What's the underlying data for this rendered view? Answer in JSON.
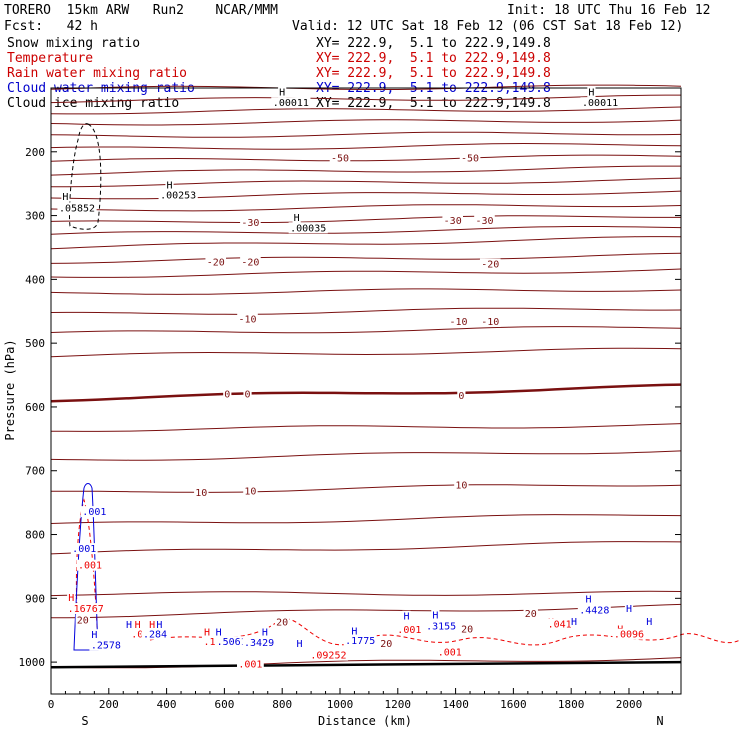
{
  "header": {
    "model": "TORERO  15km ARW   Run2    NCAR/MMM",
    "init": "Init: 18 UTC Thu 16 Feb 12",
    "fcst": "Fcst:   42 h",
    "valid": "Valid: 12 UTC Sat 18 Feb 12 (06 CST Sat 18 Feb 12)"
  },
  "legend": [
    {
      "name": "Snow mixing ratio",
      "color": "#000000",
      "xy": "XY= 222.9,  5.1 to 222.9,149.8",
      "xy_color": "#000000"
    },
    {
      "name": "Temperature",
      "color": "#cc0000",
      "xy": "XY= 222.9,  5.1 to 222.9,149.8",
      "xy_color": "#cc0000"
    },
    {
      "name": "Rain water mixing ratio",
      "color": "#cc0000",
      "xy": "XY= 222.9,  5.1 to 222.9,149.8",
      "xy_color": "#cc0000"
    },
    {
      "name": "Cloud water mixing ratio",
      "color": "#0000cc",
      "xy": "XY= 222.9,  5.1 to 222.9,149.8",
      "xy_color": "#0000cc"
    },
    {
      "name": "Cloud ice mixing ratio",
      "color": "#000000",
      "xy": "XY= 222.9,  5.1 to 222.9,149.8",
      "xy_color": "#000000"
    }
  ],
  "chart_data": {
    "type": "contour",
    "xlabel": "Distance (km)",
    "ylabel": "Pressure (hPa)",
    "xlim": [
      0,
      2180
    ],
    "ylim": [
      1050,
      100
    ],
    "x_ticks": [
      0,
      200,
      400,
      600,
      800,
      1000,
      1200,
      1400,
      1600,
      1800,
      2000
    ],
    "y_ticks": [
      200,
      300,
      400,
      500,
      600,
      700,
      800,
      900,
      1000
    ],
    "endpoints": {
      "left": "S",
      "right": "N"
    },
    "isotherms": [
      {
        "p0": 1008,
        "p1": 993,
        "label": ""
      },
      {
        "p0": 928,
        "p1": 912,
        "label": "20"
      },
      {
        "p0": 893,
        "p1": 892,
        "label": ""
      },
      {
        "p0": 830,
        "p1": 812,
        "label": ""
      },
      {
        "p0": 785,
        "p1": 768,
        "label": ""
      },
      {
        "p0": 735,
        "p1": 720,
        "label": "10"
      },
      {
        "p0": 683,
        "p1": 668,
        "label": ""
      },
      {
        "p0": 636,
        "p1": 628,
        "label": ""
      },
      {
        "p0": 588,
        "p1": 568,
        "label": "0"
      },
      {
        "p0": 520,
        "p1": 510,
        "label": ""
      },
      {
        "p0": 485,
        "p1": 475,
        "label": ""
      },
      {
        "p0": 455,
        "p1": 445,
        "label": ""
      },
      {
        "p0": 422,
        "p1": 415,
        "label": "-10"
      },
      {
        "p0": 395,
        "p1": 385,
        "label": ""
      },
      {
        "p0": 372,
        "p1": 362,
        "label": ""
      },
      {
        "p0": 350,
        "p1": 335,
        "label": ""
      },
      {
        "p0": 330,
        "p1": 318,
        "label": ""
      },
      {
        "p0": 312,
        "p1": 300,
        "label": "-30"
      },
      {
        "p0": 292,
        "p1": 282,
        "label": ""
      },
      {
        "p0": 272,
        "p1": 262,
        "label": ""
      },
      {
        "p0": 252,
        "p1": 244,
        "label": ""
      },
      {
        "p0": 234,
        "p1": 225,
        "label": ""
      },
      {
        "p0": 215,
        "p1": 207,
        "label": "-50"
      },
      {
        "p0": 196,
        "p1": 188,
        "label": ""
      },
      {
        "p0": 176,
        "p1": 170,
        "label": ""
      },
      {
        "p0": 156,
        "p1": 150,
        "label": ""
      },
      {
        "p0": 138,
        "p1": 132,
        "label": ""
      },
      {
        "p0": 120,
        "p1": 114,
        "label": ""
      },
      {
        "p0": 101,
        "p1": 98,
        "label": ""
      }
    ],
    "temperature_labels": [
      {
        "text": "-50",
        "x": 1000,
        "p": 214
      },
      {
        "text": "-50",
        "x": 1450,
        "p": 214
      },
      {
        "text": "-30",
        "x": 690,
        "p": 315
      },
      {
        "text": "-30",
        "x": 1390,
        "p": 312
      },
      {
        "text": "-30",
        "x": 1500,
        "p": 312
      },
      {
        "text": "-20",
        "x": 570,
        "p": 377
      },
      {
        "text": "-20",
        "x": 690,
        "p": 377
      },
      {
        "text": "-20",
        "x": 1520,
        "p": 380
      },
      {
        "text": "-10",
        "x": 680,
        "p": 466
      },
      {
        "text": "-10",
        "x": 1410,
        "p": 470
      },
      {
        "text": "-10",
        "x": 1520,
        "p": 470
      },
      {
        "text": "0",
        "x": 610,
        "p": 584
      },
      {
        "text": "0",
        "x": 680,
        "p": 584
      },
      {
        "text": "0",
        "x": 1420,
        "p": 586
      },
      {
        "text": "10",
        "x": 520,
        "p": 738
      },
      {
        "text": "10",
        "x": 690,
        "p": 736
      },
      {
        "text": "10",
        "x": 1420,
        "p": 726
      },
      {
        "text": "20",
        "x": 800,
        "p": 941
      },
      {
        "text": "20",
        "x": 1660,
        "p": 928
      },
      {
        "text": "20",
        "x": 1440,
        "p": 952
      },
      {
        "text": "20",
        "x": 1160,
        "p": 975
      },
      {
        "text": "20",
        "x": 110,
        "p": 938
      }
    ],
    "snow_labels": [
      {
        "text": "H",
        "x": 800,
        "p": 110
      },
      {
        "text": ".00011",
        "x": 830,
        "p": 127
      },
      {
        "text": "H",
        "x": 1870,
        "p": 110
      },
      {
        "text": ".00011",
        "x": 1900,
        "p": 127
      },
      {
        "text": "H",
        "x": 410,
        "p": 256
      },
      {
        "text": ".00253",
        "x": 440,
        "p": 272
      },
      {
        "text": "H",
        "x": 850,
        "p": 307
      },
      {
        "text": ".00035",
        "x": 890,
        "p": 323
      },
      {
        "text": "H",
        "x": 50,
        "p": 274
      },
      {
        "text": ".05852",
        "x": 90,
        "p": 292
      }
    ],
    "rain_labels": [
      {
        "text": "H",
        "x": 70,
        "p": 903
      },
      {
        "text": ".16767",
        "x": 120,
        "p": 920
      },
      {
        "text": "H",
        "x": 300,
        "p": 945
      },
      {
        "text": "H",
        "x": 350,
        "p": 945
      },
      {
        "text": ".06266",
        "x": 340,
        "p": 960
      },
      {
        "text": "H",
        "x": 540,
        "p": 957
      },
      {
        "text": ".15086",
        "x": 590,
        "p": 972
      },
      {
        "text": ".09252",
        "x": 960,
        "p": 993
      },
      {
        "text": ".001",
        "x": 690,
        "p": 1007
      },
      {
        "text": ".001",
        "x": 1240,
        "p": 953
      },
      {
        "text": ".001",
        "x": 135,
        "p": 852
      },
      {
        "text": "H",
        "x": 1730,
        "p": 940
      },
      {
        "text": ".041",
        "x": 1760,
        "p": 944
      },
      {
        "text": "H",
        "x": 1970,
        "p": 952
      },
      {
        "text": ".0096",
        "x": 2000,
        "p": 960
      },
      {
        "text": ".001",
        "x": 1380,
        "p": 988
      }
    ],
    "cloud_water_labels": [
      {
        "text": ".001",
        "x": 150,
        "p": 768
      },
      {
        "text": ".001",
        "x": 115,
        "p": 826
      },
      {
        "text": "H",
        "x": 150,
        "p": 961
      },
      {
        "text": ".2578",
        "x": 190,
        "p": 977
      },
      {
        "text": "H",
        "x": 375,
        "p": 945
      },
      {
        "text": "H",
        "x": 580,
        "p": 957
      },
      {
        "text": ".5061",
        "x": 625,
        "p": 972
      },
      {
        "text": "H",
        "x": 740,
        "p": 957
      },
      {
        "text": ".3429",
        "x": 720,
        "p": 973
      },
      {
        "text": "H",
        "x": 1050,
        "p": 955
      },
      {
        "text": ".1775",
        "x": 1070,
        "p": 970
      },
      {
        "text": "H",
        "x": 1330,
        "p": 930
      },
      {
        "text": ".3155",
        "x": 1350,
        "p": 947
      },
      {
        "text": "H",
        "x": 1860,
        "p": 905
      },
      {
        "text": ".4428",
        "x": 1880,
        "p": 922
      },
      {
        "text": "H",
        "x": 1810,
        "p": 940
      },
      {
        "text": "H",
        "x": 1230,
        "p": 932
      },
      {
        "text": "H",
        "x": 270,
        "p": 945
      },
      {
        "text": "H",
        "x": 860,
        "p": 975
      },
      {
        "text": ".284",
        "x": 360,
        "p": 960
      },
      {
        "text": "H",
        "x": 2070,
        "p": 940
      },
      {
        "text": "H",
        "x": 2000,
        "p": 920
      }
    ],
    "colors": {
      "temperature": "#7a1010",
      "rain": "#ee0000",
      "cloud_water": "#0000dd",
      "snow": "#000000",
      "ground": "#000000"
    }
  }
}
